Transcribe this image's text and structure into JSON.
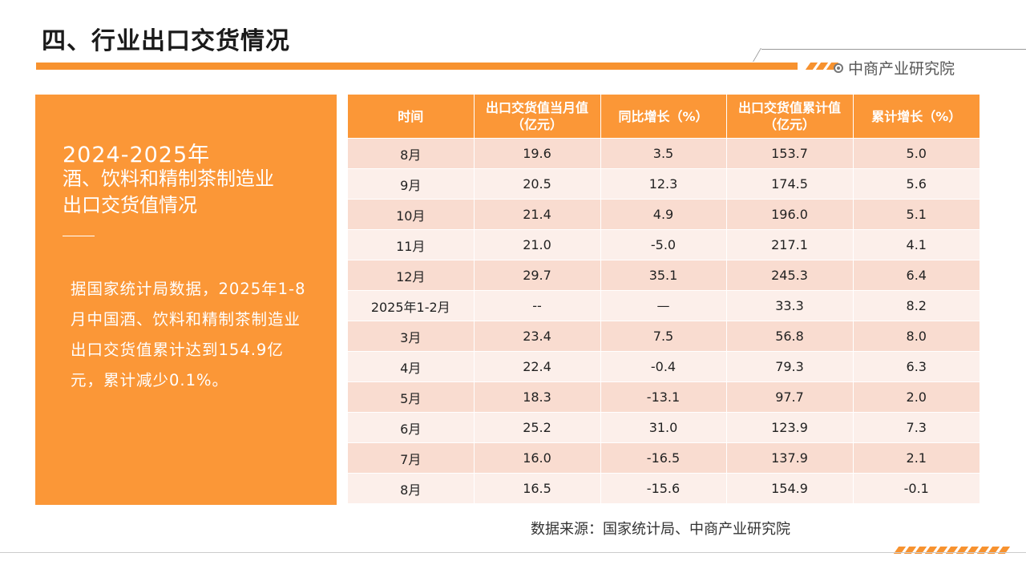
{
  "header": {
    "title": "四、行业出口交货情况",
    "brand": "中商产业研究院"
  },
  "panel": {
    "year": "2024-2025年",
    "subtitle_line1": "酒、饮料和精制茶制造业",
    "subtitle_line2": "出口交货值情况",
    "body": "据国家统计局数据，2025年1-8月中国酒、饮料和精制茶制造业出口交货值累计达到154.9亿元，累计减少0.1%。"
  },
  "table": {
    "columns": [
      "时间",
      "出口交货值当月值（亿元）",
      "同比增长（%）",
      "出口交货值累计值（亿元）",
      "累计增长（%）"
    ],
    "rows": [
      [
        "8月",
        "19.6",
        "3.5",
        "153.7",
        "5.0"
      ],
      [
        "9月",
        "20.5",
        "12.3",
        "174.5",
        "5.6"
      ],
      [
        "10月",
        "21.4",
        "4.9",
        "196.0",
        "5.1"
      ],
      [
        "11月",
        "21.0",
        "-5.0",
        "217.1",
        "4.1"
      ],
      [
        "12月",
        "29.7",
        "35.1",
        "245.3",
        "6.4"
      ],
      [
        "2025年1-2月",
        "--",
        "—",
        "33.3",
        "8.2"
      ],
      [
        "3月",
        "23.4",
        "7.5",
        "56.8",
        "8.0"
      ],
      [
        "4月",
        "22.4",
        "-0.4",
        "79.3",
        "6.3"
      ],
      [
        "5月",
        "18.3",
        "-13.1",
        "97.7",
        "2.0"
      ],
      [
        "6月",
        "25.2",
        "31.0",
        "123.9",
        "7.3"
      ],
      [
        "7月",
        "16.0",
        "-16.5",
        "137.9",
        "2.1"
      ],
      [
        "8月",
        "16.5",
        "-15.6",
        "154.9",
        "-0.1"
      ]
    ]
  },
  "footer": {
    "source": "数据来源：国家统计局、中商产业研究院"
  },
  "colors": {
    "accent": "#fb9737",
    "row_odd": "#f9dcd0",
    "row_even": "#fcefea"
  }
}
